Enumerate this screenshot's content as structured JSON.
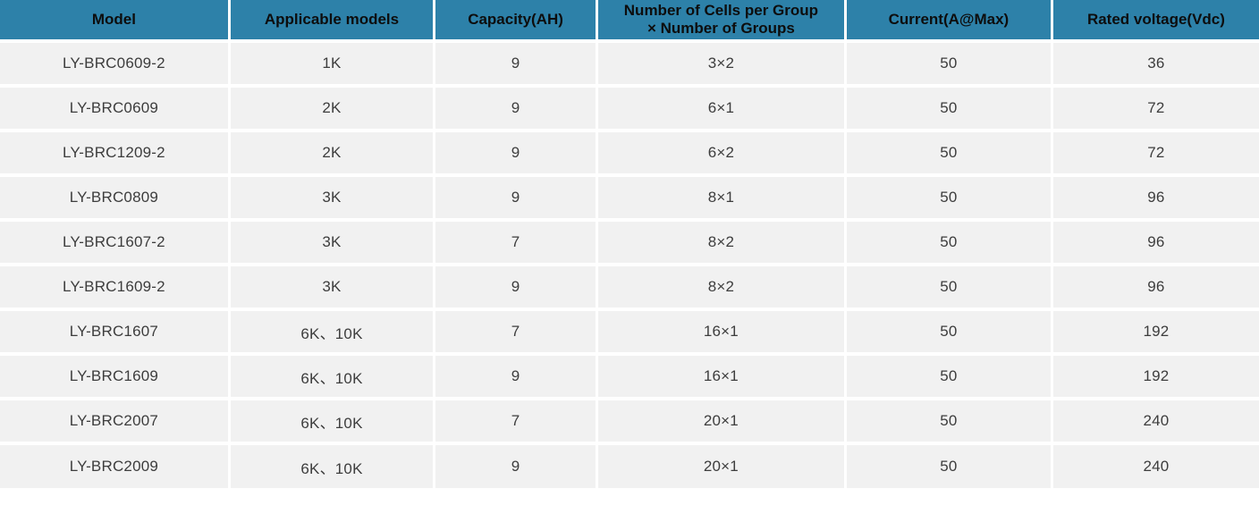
{
  "colors": {
    "header_bg": "#2D81A9",
    "header_text": "#0D0D0D",
    "row_bg": "#F1F1F1",
    "body_text": "#3D3D3D",
    "separator": "#FFFFFF"
  },
  "table": {
    "columns": [
      "Model",
      "Applicable models",
      "Capacity(AH)",
      "Number of Cells per Group\n× Number of Groups",
      "Current(A@Max)",
      "Rated voltage(Vdc)"
    ],
    "rows": [
      [
        "LY-BRC0609-2",
        "1K",
        "9",
        "3×2",
        "50",
        "36"
      ],
      [
        "LY-BRC0609",
        "2K",
        "9",
        "6×1",
        "50",
        "72"
      ],
      [
        "LY-BRC1209-2",
        "2K",
        "9",
        "6×2",
        "50",
        "72"
      ],
      [
        "LY-BRC0809",
        "3K",
        "9",
        "8×1",
        "50",
        "96"
      ],
      [
        "LY-BRC1607-2",
        "3K",
        "7",
        "8×2",
        "50",
        "96"
      ],
      [
        "LY-BRC1609-2",
        "3K",
        "9",
        "8×2",
        "50",
        "96"
      ],
      [
        "LY-BRC1607",
        "6K、10K",
        "7",
        "16×1",
        "50",
        "192"
      ],
      [
        "LY-BRC1609",
        "6K、10K",
        "9",
        "16×1",
        "50",
        "192"
      ],
      [
        "LY-BRC2007",
        "6K、10K",
        "7",
        "20×1",
        "50",
        "240"
      ],
      [
        "LY-BRC2009",
        "6K、10K",
        "9",
        "20×1",
        "50",
        "240"
      ]
    ]
  }
}
